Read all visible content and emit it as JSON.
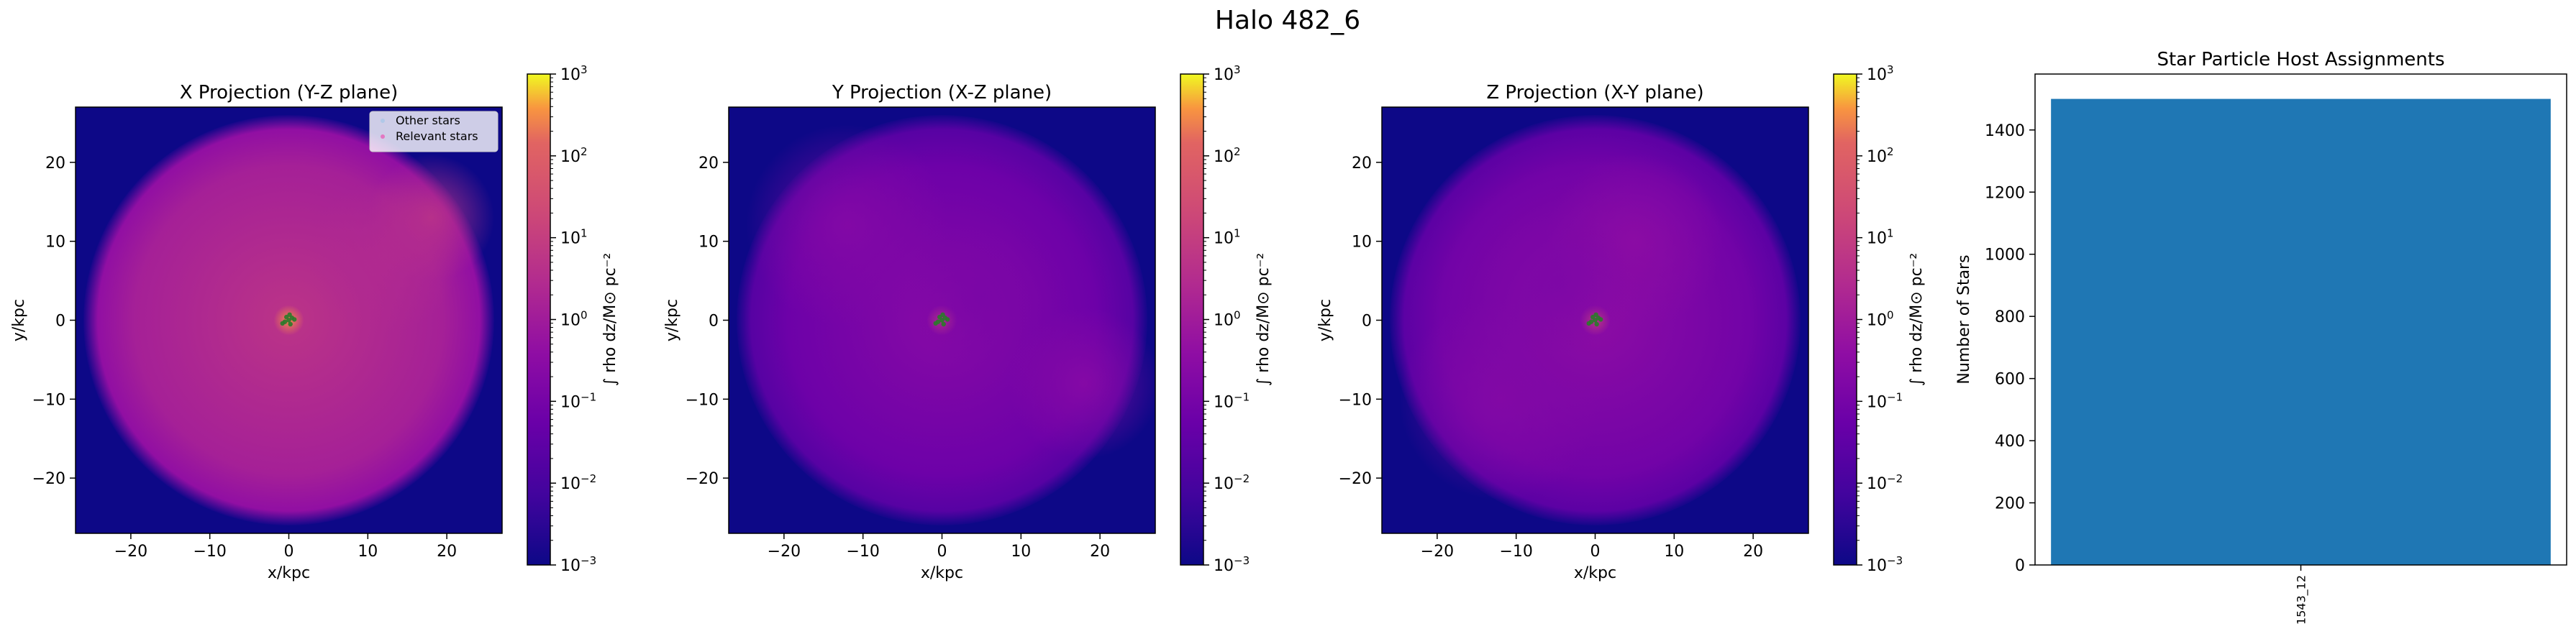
{
  "figure": {
    "suptitle": "Halo 482_6"
  },
  "chart_data": [
    {
      "type": "heatmap",
      "title": "X Projection (Y-Z plane)",
      "xlabel": "x/kpc",
      "ylabel": "y/kpc",
      "xlim": [
        -27,
        27
      ],
      "ylim": [
        -27,
        27
      ],
      "xticks": [
        -20,
        -10,
        0,
        10,
        20
      ],
      "yticks": [
        -20,
        -10,
        0,
        10,
        20
      ],
      "xtick_labels": [
        "−20",
        "−10",
        "0",
        "10",
        "20"
      ],
      "ytick_labels": [
        "−20",
        "−10",
        "0",
        "10",
        "20"
      ],
      "disk_radius": 26,
      "legend": {
        "placement": "top-right",
        "entries": [
          {
            "label": "Other stars",
            "color": "#b0c8e8"
          },
          {
            "label": "Relevant stars",
            "color": "#e377c2"
          }
        ]
      },
      "colorbar": {
        "label": "∫ rho dz/M⊙ pc⁻²",
        "scale": "log",
        "min_exp": -3,
        "max_exp": 3,
        "tick_bases": [
          "10",
          "10",
          "10",
          "10",
          "10",
          "10",
          "10"
        ],
        "tick_exps": [
          "−3",
          "−2",
          "−1",
          "0",
          "1",
          "2",
          "3"
        ]
      },
      "background_level": 0.5,
      "features": [
        {
          "x": 0,
          "y": 0,
          "sigma": 1.2,
          "strength": 3.5
        },
        {
          "x": 18,
          "y": 13,
          "sigma": 5,
          "strength": 1.0
        },
        {
          "x": 12,
          "y": 8,
          "sigma": 6,
          "strength": 0.6
        }
      ],
      "stars_center": [
        0,
        0
      ],
      "star_color": "#2a7a2a"
    },
    {
      "type": "heatmap",
      "title": "Y Projection (X-Z plane)",
      "xlabel": "x/kpc",
      "ylabel": "y/kpc",
      "xlim": [
        -27,
        27
      ],
      "ylim": [
        -27,
        27
      ],
      "xticks": [
        -20,
        -10,
        0,
        10,
        20
      ],
      "yticks": [
        -20,
        -10,
        0,
        10,
        20
      ],
      "xtick_labels": [
        "−20",
        "−10",
        "0",
        "10",
        "20"
      ],
      "ytick_labels": [
        "−20",
        "−10",
        "0",
        "10",
        "20"
      ],
      "disk_radius": 26,
      "colorbar": {
        "label": "∫ rho dz/M⊙ pc⁻²",
        "scale": "log",
        "min_exp": -3,
        "max_exp": 3,
        "tick_bases": [
          "10",
          "10",
          "10",
          "10",
          "10",
          "10",
          "10"
        ],
        "tick_exps": [
          "−3",
          "−2",
          "−1",
          "0",
          "1",
          "2",
          "3"
        ]
      },
      "background_level": 0.28,
      "features": [
        {
          "x": 0,
          "y": 0,
          "sigma": 1.2,
          "strength": 3.5
        },
        {
          "x": -12,
          "y": 12,
          "sigma": 8,
          "strength": 0.9
        },
        {
          "x": 18,
          "y": -8,
          "sigma": 6,
          "strength": 1.0
        },
        {
          "x": 5,
          "y": 3,
          "sigma": 6,
          "strength": 0.6
        }
      ],
      "stars_center": [
        0,
        0
      ],
      "star_color": "#2a7a2a"
    },
    {
      "type": "heatmap",
      "title": "Z Projection (X-Y plane)",
      "xlabel": "x/kpc",
      "ylabel": "y/kpc",
      "xlim": [
        -27,
        27
      ],
      "ylim": [
        -27,
        27
      ],
      "xticks": [
        -20,
        -10,
        0,
        10,
        20
      ],
      "yticks": [
        -20,
        -10,
        0,
        10,
        20
      ],
      "xtick_labels": [
        "−20",
        "−10",
        "0",
        "10",
        "20"
      ],
      "ytick_labels": [
        "−20",
        "−10",
        "0",
        "10",
        "20"
      ],
      "disk_radius": 26,
      "colorbar": {
        "label": "∫ rho dz/M⊙ pc⁻²",
        "scale": "log",
        "min_exp": -3,
        "max_exp": 3,
        "tick_bases": [
          "10",
          "10",
          "10",
          "10",
          "10",
          "10",
          "10"
        ],
        "tick_exps": [
          "−3",
          "−2",
          "−1",
          "0",
          "1",
          "2",
          "3"
        ]
      },
      "background_level": 0.3,
      "features": [
        {
          "x": 0,
          "y": 0,
          "sigma": 1.2,
          "strength": 3.5
        },
        {
          "x": 5,
          "y": 10,
          "sigma": 7,
          "strength": 1.0
        },
        {
          "x": -12,
          "y": -10,
          "sigma": 8,
          "strength": 0.7
        },
        {
          "x": -5,
          "y": 5,
          "sigma": 6,
          "strength": 0.5
        }
      ],
      "stars_center": [
        0,
        0
      ],
      "star_color": "#2a7a2a"
    },
    {
      "type": "bar",
      "title": "Star Particle Host Assignments",
      "xlabel": "",
      "ylabel": "Number of Stars",
      "categories": [
        "1543_12"
      ],
      "values": [
        1500
      ],
      "ylim": [
        0,
        1580
      ],
      "yticks": [
        0,
        200,
        400,
        600,
        800,
        1000,
        1200,
        1400
      ],
      "ytick_labels": [
        "0",
        "200",
        "400",
        "600",
        "800",
        "1000",
        "1200",
        "1400"
      ],
      "bar_color": "#1f77b4"
    }
  ]
}
